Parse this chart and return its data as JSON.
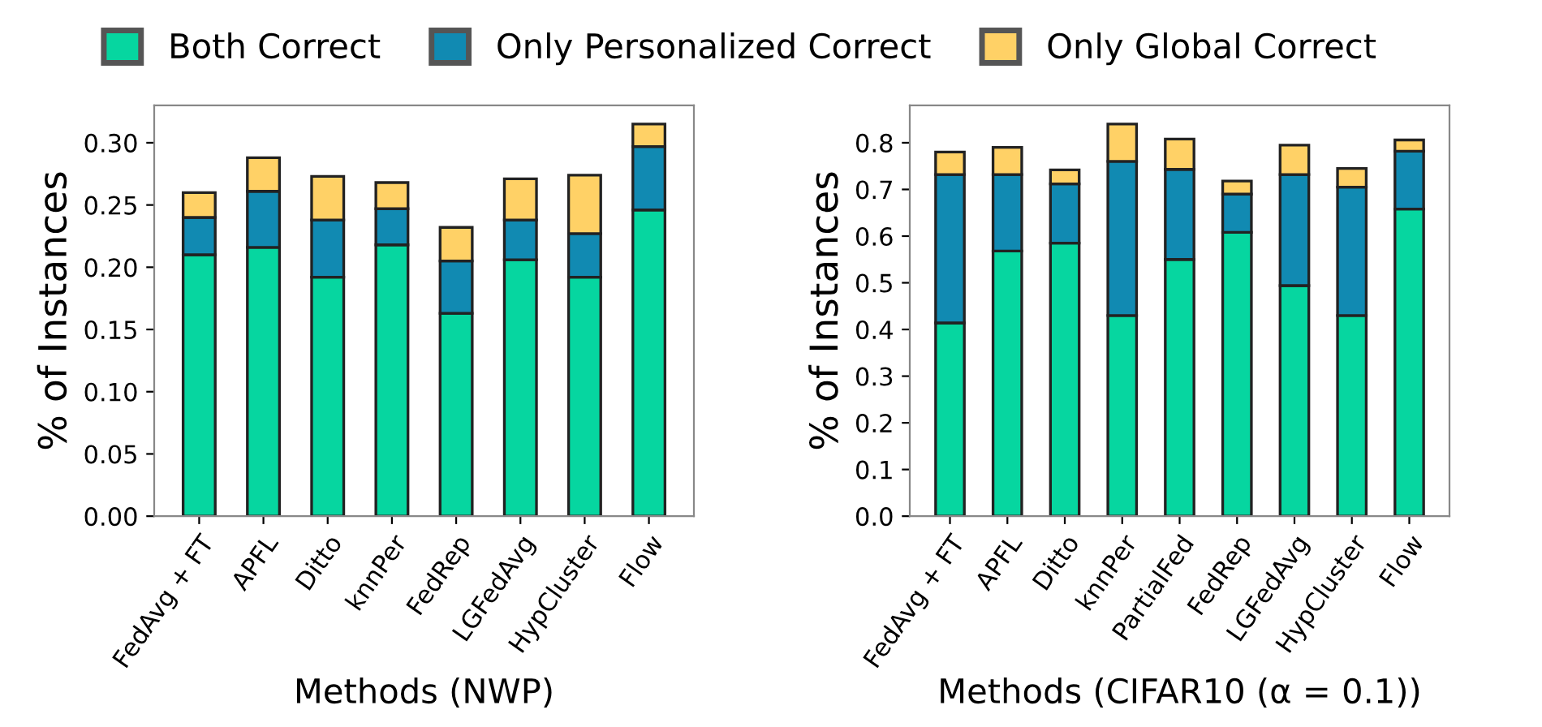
{
  "chart_data": [
    {
      "type": "bar",
      "stacked": true,
      "legend": "top",
      "ylabel": "% of Instances",
      "xlabel": "Methods (NWP)",
      "categories": [
        "FedAvg + FT",
        "APFL",
        "Ditto",
        "knnPer",
        "FedRep",
        "LGFedAvg",
        "HypCluster",
        "Flow"
      ],
      "series": [
        {
          "name": "Both Correct",
          "color": "#06d6a0",
          "values": [
            0.21,
            0.216,
            0.192,
            0.218,
            0.163,
            0.206,
            0.192,
            0.246
          ]
        },
        {
          "name": "Only Personalized Correct",
          "color": "#118ab2",
          "values": [
            0.03,
            0.045,
            0.046,
            0.029,
            0.042,
            0.032,
            0.035,
            0.051
          ]
        },
        {
          "name": "Only Global Correct",
          "color": "#ffd166",
          "values": [
            0.02,
            0.027,
            0.035,
            0.021,
            0.027,
            0.033,
            0.047,
            0.018
          ]
        }
      ],
      "ylim": [
        0,
        0.33
      ],
      "yticks": [
        {
          "value": 0,
          "label": "0.00"
        },
        {
          "value": 0.05,
          "label": "0.05"
        },
        {
          "value": 0.1,
          "label": "0.10"
        },
        {
          "value": 0.15,
          "label": "0.15"
        },
        {
          "value": 0.2,
          "label": "0.20"
        },
        {
          "value": 0.25,
          "label": "0.25"
        },
        {
          "value": 0.3,
          "label": "0.30"
        }
      ]
    },
    {
      "type": "bar",
      "stacked": true,
      "ylabel": "% of Instances",
      "xlabel": "Methods (CIFAR10 (α = 0.1))",
      "categories": [
        "FedAvg + FT",
        "APFL",
        "Ditto",
        "knnPer",
        "PartialFed",
        "FedRep",
        "LGFedAvg",
        "HypCluster",
        "Flow"
      ],
      "series": [
        {
          "color": "#06d6a0",
          "values": [
            0.414,
            0.568,
            0.585,
            0.43,
            0.55,
            0.608,
            0.494,
            0.43,
            0.658
          ]
        },
        {
          "color": "#118ab2",
          "values": [
            0.318,
            0.164,
            0.127,
            0.33,
            0.193,
            0.082,
            0.238,
            0.275,
            0.124
          ]
        },
        {
          "color": "#ffd166",
          "values": [
            0.048,
            0.058,
            0.03,
            0.08,
            0.065,
            0.028,
            0.063,
            0.04,
            0.024
          ]
        }
      ],
      "ylim": [
        0,
        0.88
      ],
      "yticks": [
        {
          "value": 0,
          "label": "0.0"
        },
        {
          "value": 0.1,
          "label": "0.1"
        },
        {
          "value": 0.2,
          "label": "0.2"
        },
        {
          "value": 0.3,
          "label": "0.3"
        },
        {
          "value": 0.4,
          "label": "0.4"
        },
        {
          "value": 0.5,
          "label": "0.5"
        },
        {
          "value": 0.6,
          "label": "0.6"
        },
        {
          "value": 0.7,
          "label": "0.7"
        },
        {
          "value": 0.8,
          "label": "0.8"
        }
      ]
    }
  ]
}
